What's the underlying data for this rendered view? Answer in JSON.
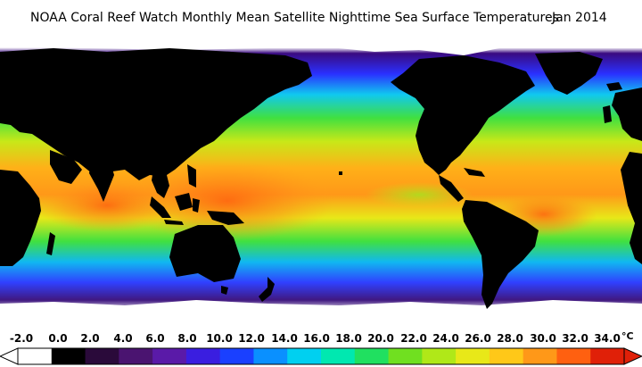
{
  "header": {
    "title": "NOAA Coral Reef Watch Monthly Mean Satellite Nighttime Sea Surface Temperatures",
    "date": "Jan 2014"
  },
  "legend": {
    "ticks": [
      "-2.0",
      "0.0",
      "2.0",
      "4.0",
      "6.0",
      "8.0",
      "10.0",
      "12.0",
      "14.0",
      "16.0",
      "18.0",
      "20.0",
      "22.0",
      "24.0",
      "26.0",
      "28.0",
      "30.0",
      "32.0",
      "34.0"
    ],
    "unit": "°C",
    "min": -2,
    "max": 34,
    "colors": [
      "#ffffff",
      "#000000",
      "#2a0a3a",
      "#4a1470",
      "#5a1aa8",
      "#3a1ee0",
      "#1a40ff",
      "#0a90ff",
      "#00d0f0",
      "#00e8b0",
      "#20e060",
      "#70e020",
      "#b0e818",
      "#e8e818",
      "#ffc818",
      "#ff9818",
      "#ff6010",
      "#e02008"
    ]
  },
  "map": {
    "projection": "equirectangular",
    "land_color": "#000000",
    "ice_color": "#ffffff",
    "ocean_color_scale": "sea surface temperature"
  }
}
